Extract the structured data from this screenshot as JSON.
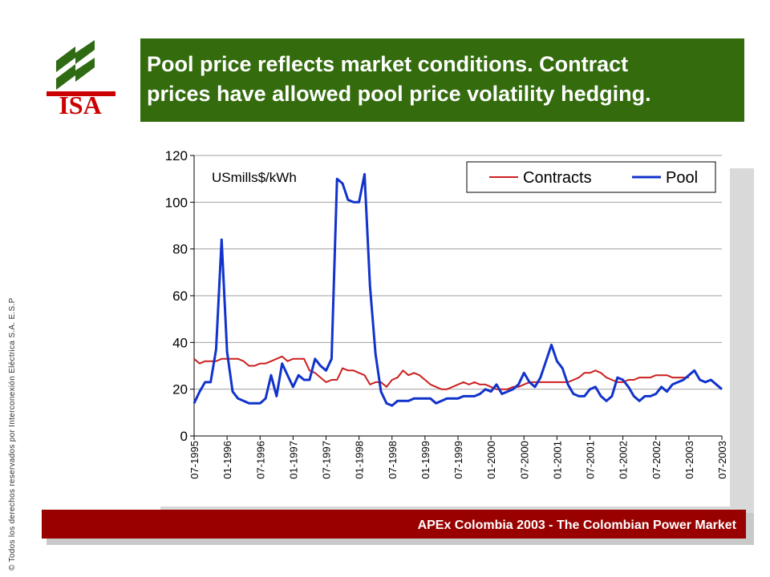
{
  "logo": {
    "text": "ISA",
    "colors": {
      "red": "#cc0000",
      "green": "#2e6b12"
    }
  },
  "title": {
    "line1": "Pool price reflects market conditions. Contract",
    "line2": "prices have allowed pool price volatility hedging."
  },
  "footer": {
    "text": "APEx Colombia 2003 - The Colombian Power Market"
  },
  "copyright": "© Todos los derechos reservados por Interconexión Eléctrica S.A. E.S.P",
  "chart_data": {
    "type": "line",
    "annotation": "USmills$/kWh",
    "ylim": [
      0,
      120
    ],
    "yticks": [
      0,
      20,
      40,
      60,
      80,
      100,
      120
    ],
    "grid": true,
    "legend": "top-right",
    "x_tick_labels": [
      "07-1995",
      "01-1996",
      "07-1996",
      "01-1997",
      "07-1997",
      "01-1998",
      "07-1998",
      "01-1999",
      "07-1999",
      "01-2000",
      "07-2000",
      "01-2001",
      "07-2001",
      "01-2002",
      "07-2002",
      "01-2003",
      "07-2003"
    ],
    "x_start": "07-1995",
    "x_step_months": 1,
    "series": [
      {
        "name": "Contracts",
        "color": "#cc1f1f",
        "values": [
          33,
          31,
          32,
          32,
          32,
          33,
          33,
          33,
          33,
          32,
          30,
          30,
          31,
          31,
          32,
          33,
          34,
          32,
          33,
          33,
          33,
          28,
          27,
          25,
          23,
          24,
          24,
          29,
          28,
          28,
          27,
          26,
          22,
          23,
          23,
          21,
          24,
          25,
          28,
          26,
          27,
          26,
          24,
          22,
          21,
          20,
          20,
          21,
          22,
          23,
          22,
          23,
          22,
          22,
          21,
          20,
          20,
          20,
          21,
          21,
          22,
          23,
          23,
          23,
          23,
          23,
          23,
          23,
          23,
          24,
          25,
          27,
          27,
          28,
          27,
          25,
          24,
          23,
          23,
          24,
          24,
          25,
          25,
          25,
          26,
          26,
          26,
          25,
          25,
          25,
          25
        ]
      },
      {
        "name": "Pool",
        "color": "#1133cc",
        "values": [
          14,
          19,
          23,
          23,
          37,
          84,
          36,
          19,
          16,
          15,
          14,
          14,
          14,
          16,
          26,
          17,
          31,
          26,
          21,
          26,
          24,
          24,
          33,
          30,
          28,
          33,
          110,
          108,
          101,
          100,
          100,
          112,
          64,
          35,
          19,
          14,
          13,
          15,
          15,
          15,
          16,
          16,
          16,
          16,
          14,
          15,
          16,
          16,
          16,
          17,
          17,
          17,
          18,
          20,
          19,
          22,
          18,
          19,
          20,
          22,
          27,
          23,
          21,
          25,
          32,
          39,
          32,
          29,
          22,
          18,
          17,
          17,
          20,
          21,
          17,
          15,
          17,
          25,
          24,
          21,
          17,
          15,
          17,
          17,
          18,
          21,
          19,
          22,
          23,
          24,
          26,
          28,
          24,
          23,
          24,
          22,
          20
        ]
      }
    ]
  }
}
